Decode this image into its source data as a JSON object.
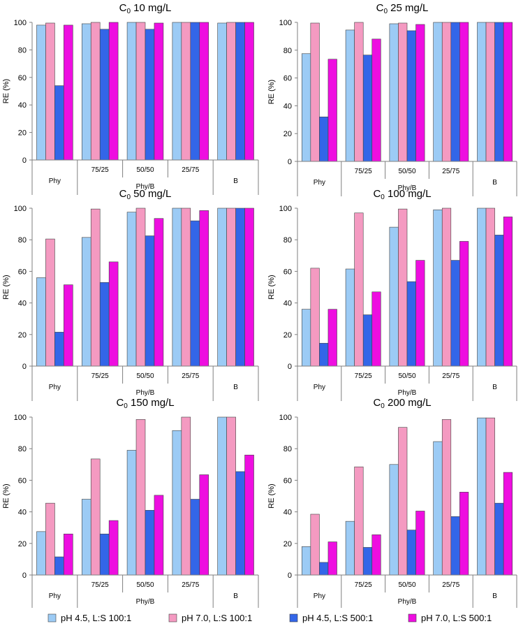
{
  "series": [
    {
      "key": "s1",
      "name": "pH 4.5, L:S 100:1",
      "color": "#9ccbf5"
    },
    {
      "key": "s2",
      "name": "pH 7.0, L:S 100:1",
      "color": "#f49ac1"
    },
    {
      "key": "s3",
      "name": "pH 4.5, L:S 500:1",
      "color": "#3366e8"
    },
    {
      "key": "s4",
      "name": "pH 7.0, L:S 500:1",
      "color": "#ee0ee0"
    }
  ],
  "chart_data": [
    {
      "type": "bar",
      "title_prefix": "C",
      "title_sub": "0",
      "title_suffix": " 10 mg/L",
      "ylabel": "RE (%)",
      "ylim": [
        0,
        100
      ],
      "yticks": [
        "0",
        "20",
        "40",
        "60",
        "80",
        "100"
      ],
      "categories": [
        "Phy",
        "75/25",
        "50/50",
        "25/75",
        "B"
      ],
      "group_label": "Phy/B",
      "series": [
        {
          "name": "pH 4.5, L:S 100:1",
          "values": [
            98,
            99,
            100,
            100,
            99.5
          ]
        },
        {
          "name": "pH 7.0, L:S 100:1",
          "values": [
            99.5,
            100,
            100,
            100,
            100
          ]
        },
        {
          "name": "pH 4.5, L:S 500:1",
          "values": [
            54,
            95,
            95,
            100,
            100
          ]
        },
        {
          "name": "pH 7.0, L:S 500:1",
          "values": [
            98,
            100,
            99.5,
            100,
            100
          ]
        }
      ]
    },
    {
      "type": "bar",
      "title_prefix": "C",
      "title_sub": "0",
      "title_suffix": " 25 mg/L",
      "ylabel": "RE (%)",
      "ylim": [
        0,
        100
      ],
      "yticks": [
        "0",
        "20",
        "40",
        "60",
        "80",
        "100"
      ],
      "categories": [
        "Phy",
        "75/25",
        "50/50",
        "25/75",
        "B"
      ],
      "group_label": "Phy/B",
      "series": [
        {
          "name": "pH 4.5, L:S 100:1",
          "values": [
            77.5,
            94.5,
            99,
            100,
            100
          ]
        },
        {
          "name": "pH 7.0, L:S 100:1",
          "values": [
            99.5,
            100,
            99.5,
            100,
            100
          ]
        },
        {
          "name": "pH 4.5, L:S 500:1",
          "values": [
            32,
            76.5,
            94,
            100,
            100
          ]
        },
        {
          "name": "pH 7.0, L:S 500:1",
          "values": [
            73.5,
            88,
            98.5,
            100,
            100
          ]
        }
      ]
    },
    {
      "type": "bar",
      "title_prefix": "C",
      "title_sub": "0",
      "title_suffix": " 50 mg/L",
      "ylabel": "RE (%)",
      "ylim": [
        0,
        100
      ],
      "yticks": [
        "0",
        "20",
        "40",
        "60",
        "80",
        "100"
      ],
      "categories": [
        "Phy",
        "75/25",
        "50/50",
        "25/75",
        "B"
      ],
      "group_label": "Phy/B",
      "series": [
        {
          "name": "pH 4.5, L:S 100:1",
          "values": [
            56,
            81.5,
            97.5,
            100,
            100
          ]
        },
        {
          "name": "pH 7.0, L:S 100:1",
          "values": [
            80.5,
            99.5,
            100,
            100,
            100
          ]
        },
        {
          "name": "pH 4.5, L:S 500:1",
          "values": [
            21.5,
            53,
            82.5,
            92,
            100
          ]
        },
        {
          "name": "pH 7.0, L:S 500:1",
          "values": [
            51.5,
            66,
            93.5,
            98.5,
            100
          ]
        }
      ]
    },
    {
      "type": "bar",
      "title_prefix": "C",
      "title_sub": "0",
      "title_suffix": " 100 mg/L",
      "ylabel": "RE (%)",
      "ylim": [
        0,
        100
      ],
      "yticks": [
        "0",
        "20",
        "40",
        "60",
        "80",
        "100"
      ],
      "categories": [
        "Phy",
        "75/25",
        "50/50",
        "25/75",
        "B"
      ],
      "group_label": "Phy/B",
      "series": [
        {
          "name": "pH 4.5, L:S 100:1",
          "values": [
            36,
            61.5,
            88,
            99,
            100
          ]
        },
        {
          "name": "pH 7.0, L:S 100:1",
          "values": [
            62,
            97,
            99.5,
            100,
            100
          ]
        },
        {
          "name": "pH 4.5, L:S 500:1",
          "values": [
            14.5,
            32.5,
            53.5,
            67,
            83
          ]
        },
        {
          "name": "pH 7.0, L:S 500:1",
          "values": [
            36,
            47,
            67,
            79,
            94.5
          ]
        }
      ]
    },
    {
      "type": "bar",
      "title_prefix": "C",
      "title_sub": "0",
      "title_suffix": " 150 mg/L",
      "ylabel": "RE (%)",
      "ylim": [
        0,
        100
      ],
      "yticks": [
        "0",
        "20",
        "40",
        "60",
        "80",
        "100"
      ],
      "categories": [
        "Phy",
        "75/25",
        "50/50",
        "25/75",
        "B"
      ],
      "group_label": "Phy/B",
      "series": [
        {
          "name": "pH 4.5, L:S 100:1",
          "values": [
            27.5,
            48,
            79,
            91.5,
            100
          ]
        },
        {
          "name": "pH 7.0, L:S 100:1",
          "values": [
            45.5,
            73.5,
            98.5,
            100,
            100
          ]
        },
        {
          "name": "pH 4.5, L:S 500:1",
          "values": [
            11.5,
            26,
            41,
            48,
            65.5
          ]
        },
        {
          "name": "pH 7.0, L:S 500:1",
          "values": [
            26,
            34.5,
            50.5,
            63.5,
            76
          ]
        }
      ]
    },
    {
      "type": "bar",
      "title_prefix": "C",
      "title_sub": "0",
      "title_suffix": " 200 mg/L",
      "ylabel": "RE (%)",
      "ylim": [
        0,
        100
      ],
      "yticks": [
        "0",
        "20",
        "40",
        "60",
        "80",
        "100"
      ],
      "categories": [
        "Phy",
        "75/25",
        "50/50",
        "25/75",
        "B"
      ],
      "group_label": "Phy/B",
      "series": [
        {
          "name": "pH 4.5, L:S 100:1",
          "values": [
            18,
            34,
            70,
            84.5,
            99.5
          ]
        },
        {
          "name": "pH 7.0, L:S 100:1",
          "values": [
            38.5,
            68.5,
            93.5,
            98.5,
            99.5
          ]
        },
        {
          "name": "pH 4.5, L:S 500:1",
          "values": [
            8,
            17.5,
            28.5,
            37,
            45.5
          ]
        },
        {
          "name": "pH 7.0, L:S 500:1",
          "values": [
            21,
            25.5,
            40.5,
            52.5,
            65
          ]
        }
      ]
    }
  ]
}
